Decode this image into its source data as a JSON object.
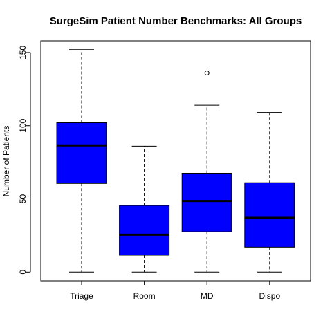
{
  "chart_data": {
    "type": "boxplot",
    "title": "SurgeSim Patient Number Benchmarks: All Groups",
    "xlabel": "",
    "ylabel": "Number of Patients",
    "ylim": [
      -6,
      158
    ],
    "y_ticks": [
      0,
      50,
      100,
      150
    ],
    "grid": false,
    "categories": [
      "Triage",
      "Room",
      "MD",
      "Dispo"
    ],
    "boxes": [
      {
        "label": "Triage",
        "min": 0,
        "q1": 60.5,
        "median": 86.5,
        "q3": 102,
        "max": 152,
        "outliers": []
      },
      {
        "label": "Room",
        "min": 0,
        "q1": 11.5,
        "median": 25.5,
        "q3": 45.5,
        "max": 86,
        "outliers": []
      },
      {
        "label": "MD",
        "min": 0,
        "q1": 27.5,
        "median": 48.5,
        "q3": 67.5,
        "max": 114,
        "outliers": [
          136
        ]
      },
      {
        "label": "Dispo",
        "min": 0,
        "q1": 17,
        "median": 37,
        "q3": 61,
        "max": 109,
        "outliers": []
      }
    ],
    "box_color": "#0000ff"
  }
}
